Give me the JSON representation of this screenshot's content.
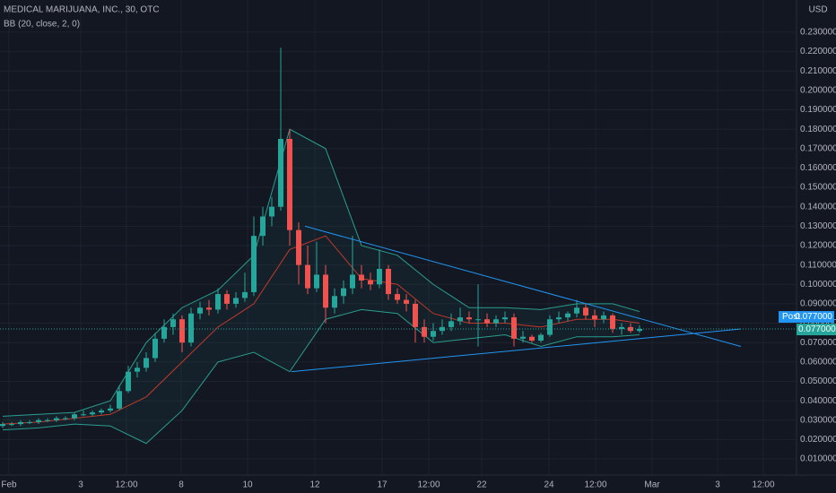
{
  "chart_data": {
    "type": "candlestick",
    "title": "MEDICAL MARIJUANA, INC., 30, OTC",
    "indicator_label": "BB (20, close, 2, 0)",
    "currency": "USD",
    "up_color": "#26a69a",
    "down_color": "#ef5350",
    "open": [
      0.027,
      0.028,
      0.028,
      0.029,
      0.029,
      0.03,
      0.03,
      0.031,
      0.031,
      0.033,
      0.033,
      0.034,
      0.035,
      0.036,
      0.045,
      0.055,
      0.057,
      0.062,
      0.072,
      0.078,
      0.082,
      0.07,
      0.085,
      0.088,
      0.087,
      0.095,
      0.09,
      0.093,
      0.096,
      0.125,
      0.135,
      0.14,
      0.175,
      0.128,
      0.11,
      0.098,
      0.105,
      0.088,
      0.094,
      0.098,
      0.105,
      0.102,
      0.1,
      0.108,
      0.095,
      0.092,
      0.09,
      0.078,
      0.073,
      0.076,
      0.078,
      0.081,
      0.083,
      0.082,
      0.082,
      0.08,
      0.082,
      0.083,
      0.072,
      0.073,
      0.071,
      0.074,
      0.082,
      0.083,
      0.085,
      0.088,
      0.084,
      0.082,
      0.084,
      0.077,
      0.078,
      0.076
    ],
    "high": [
      0.029,
      0.029,
      0.03,
      0.03,
      0.031,
      0.031,
      0.032,
      0.032,
      0.034,
      0.035,
      0.035,
      0.036,
      0.038,
      0.048,
      0.058,
      0.06,
      0.065,
      0.075,
      0.082,
      0.085,
      0.084,
      0.088,
      0.091,
      0.092,
      0.098,
      0.097,
      0.096,
      0.106,
      0.135,
      0.14,
      0.145,
      0.222,
      0.18,
      0.132,
      0.12,
      0.122,
      0.11,
      0.098,
      0.102,
      0.125,
      0.11,
      0.106,
      0.118,
      0.11,
      0.098,
      0.095,
      0.092,
      0.082,
      0.08,
      0.082,
      0.085,
      0.088,
      0.086,
      0.1,
      0.085,
      0.084,
      0.086,
      0.085,
      0.076,
      0.074,
      0.075,
      0.084,
      0.086,
      0.086,
      0.092,
      0.09,
      0.087,
      0.086,
      0.085,
      0.08,
      0.08,
      0.079
    ],
    "low": [
      0.026,
      0.027,
      0.027,
      0.028,
      0.028,
      0.029,
      0.029,
      0.03,
      0.03,
      0.032,
      0.032,
      0.033,
      0.034,
      0.035,
      0.044,
      0.052,
      0.055,
      0.06,
      0.07,
      0.074,
      0.065,
      0.068,
      0.082,
      0.084,
      0.085,
      0.087,
      0.088,
      0.091,
      0.094,
      0.12,
      0.13,
      0.138,
      0.12,
      0.1,
      0.095,
      0.096,
      0.08,
      0.085,
      0.09,
      0.095,
      0.098,
      0.097,
      0.098,
      0.092,
      0.09,
      0.086,
      0.07,
      0.07,
      0.071,
      0.074,
      0.076,
      0.079,
      0.08,
      0.068,
      0.078,
      0.078,
      0.08,
      0.068,
      0.07,
      0.07,
      0.07,
      0.073,
      0.08,
      0.081,
      0.083,
      0.082,
      0.078,
      0.08,
      0.075,
      0.074,
      0.075,
      0.075
    ],
    "close": [
      0.028,
      0.028,
      0.029,
      0.029,
      0.03,
      0.03,
      0.031,
      0.031,
      0.033,
      0.033,
      0.034,
      0.035,
      0.036,
      0.045,
      0.055,
      0.057,
      0.062,
      0.072,
      0.078,
      0.082,
      0.07,
      0.085,
      0.088,
      0.087,
      0.095,
      0.09,
      0.093,
      0.096,
      0.125,
      0.135,
      0.14,
      0.175,
      0.128,
      0.11,
      0.098,
      0.105,
      0.088,
      0.094,
      0.098,
      0.105,
      0.102,
      0.1,
      0.108,
      0.095,
      0.092,
      0.09,
      0.078,
      0.073,
      0.076,
      0.078,
      0.081,
      0.083,
      0.082,
      0.082,
      0.08,
      0.082,
      0.083,
      0.072,
      0.073,
      0.071,
      0.074,
      0.082,
      0.083,
      0.085,
      0.088,
      0.084,
      0.082,
      0.084,
      0.077,
      0.078,
      0.076,
      0.077
    ],
    "bands": {
      "x": [
        0,
        4,
        8,
        12,
        16,
        20,
        24,
        28,
        32,
        36,
        40,
        44,
        48,
        52,
        56,
        60,
        64,
        68,
        71
      ],
      "upper": [
        0.032,
        0.033,
        0.034,
        0.04,
        0.07,
        0.088,
        0.097,
        0.115,
        0.18,
        0.17,
        0.12,
        0.115,
        0.1,
        0.088,
        0.088,
        0.087,
        0.09,
        0.09,
        0.086
      ],
      "middle": [
        0.028,
        0.029,
        0.031,
        0.033,
        0.042,
        0.06,
        0.078,
        0.09,
        0.118,
        0.125,
        0.103,
        0.1,
        0.085,
        0.08,
        0.08,
        0.078,
        0.082,
        0.082,
        0.08
      ],
      "lower": [
        0.025,
        0.026,
        0.028,
        0.027,
        0.018,
        0.035,
        0.06,
        0.065,
        0.055,
        0.082,
        0.087,
        0.085,
        0.07,
        0.072,
        0.074,
        0.068,
        0.073,
        0.073,
        0.074
      ],
      "band_color": "#2a9d8f",
      "middle_color": "#c0392b"
    },
    "trendlines": [
      {
        "x": [
          33.7,
          82.3
        ],
        "y": [
          0.13,
          0.068
        ]
      },
      {
        "x": [
          32.2,
          82.3
        ],
        "y": [
          0.055,
          0.077
        ]
      }
    ],
    "trendline_color": "#2196f3",
    "last_price": {
      "value": 0.077,
      "label": "0.077000"
    },
    "post_label": "Post",
    "xlim": [
      -0.3,
      88.5
    ],
    "ylim": [
      0.0017,
      0.2466
    ],
    "xticks": [
      {
        "value": 0.7,
        "label": "Feb"
      },
      {
        "value": 8.7,
        "label": "3"
      },
      {
        "value": 13.8,
        "label": "12:00"
      },
      {
        "value": 19.9,
        "label": "8"
      },
      {
        "value": 27.3,
        "label": "10"
      },
      {
        "value": 34.8,
        "label": "12"
      },
      {
        "value": 42.3,
        "label": "17"
      },
      {
        "value": 47.5,
        "label": "12:00"
      },
      {
        "value": 53.4,
        "label": "22"
      },
      {
        "value": 60.9,
        "label": "24"
      },
      {
        "value": 66.1,
        "label": "12:00"
      },
      {
        "value": 72.4,
        "label": "Mar"
      },
      {
        "value": 79.7,
        "label": "3"
      },
      {
        "value": 84.8,
        "label": "12:00"
      }
    ],
    "yticks": [
      {
        "value": 0.01,
        "label": "0.010000"
      },
      {
        "value": 0.02,
        "label": "0.020000"
      },
      {
        "value": 0.03,
        "label": "0.030000"
      },
      {
        "value": 0.04,
        "label": "0.040000"
      },
      {
        "value": 0.05,
        "label": "0.050000"
      },
      {
        "value": 0.06,
        "label": "0.060000"
      },
      {
        "value": 0.07,
        "label": "0.070000"
      },
      {
        "value": 0.08,
        "label": "0.080000"
      },
      {
        "value": 0.09,
        "label": "0.090000"
      },
      {
        "value": 0.1,
        "label": "0.100000"
      },
      {
        "value": 0.11,
        "label": "0.110000"
      },
      {
        "value": 0.12,
        "label": "0.120000"
      },
      {
        "value": 0.13,
        "label": "0.130000"
      },
      {
        "value": 0.14,
        "label": "0.140000"
      },
      {
        "value": 0.15,
        "label": "0.150000"
      },
      {
        "value": 0.16,
        "label": "0.160000"
      },
      {
        "value": 0.17,
        "label": "0.170000"
      },
      {
        "value": 0.18,
        "label": "0.180000"
      },
      {
        "value": 0.19,
        "label": "0.190000"
      },
      {
        "value": 0.2,
        "label": "0.200000"
      },
      {
        "value": 0.21,
        "label": "0.210000"
      },
      {
        "value": 0.22,
        "label": "0.220000"
      },
      {
        "value": 0.23,
        "label": "0.230000"
      }
    ],
    "grid": true
  }
}
